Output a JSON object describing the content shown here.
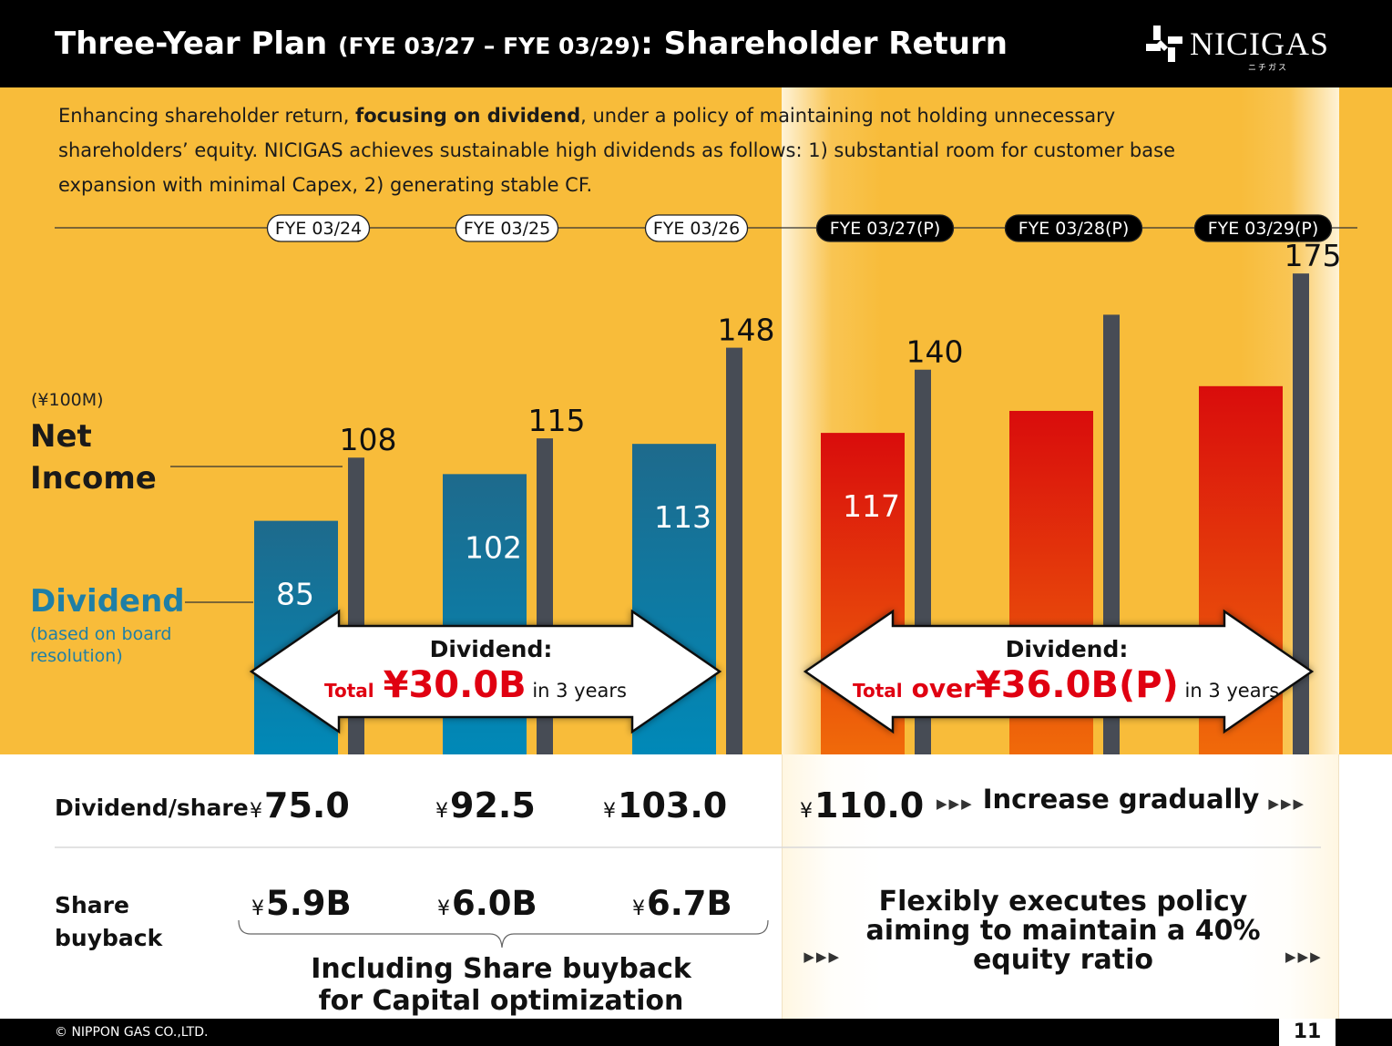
{
  "header": {
    "title_main": "Three-Year Plan ",
    "title_sub": "(FYE 03/27 – FYE 03/29)",
    "title_end": ": Shareholder Return",
    "logo_text": "NICIGAS",
    "logo_kana": "ニチガス"
  },
  "intro": {
    "part1": "Enhancing shareholder return, ",
    "bold": "focusing on dividend",
    "part2": ", under a policy of maintaining not holding unnecessary shareholders’ equity. NICIGAS achieves sustainable high dividends as follows: 1) substantial room for customer base expansion with minimal Capex, 2) generating stable CF."
  },
  "legend": {
    "unit": "(¥100M)",
    "net_income": "Net Income",
    "dividend": "Dividend",
    "dividend_note": "(based on board resolution)"
  },
  "chart_data": {
    "type": "bar",
    "categories": [
      "FYE 03/24",
      "FYE 03/25",
      "FYE 03/26",
      "FYE 03/27(P)",
      "FYE 03/28(P)",
      "FYE 03/29(P)"
    ],
    "projected": [
      false,
      false,
      false,
      true,
      true,
      true
    ],
    "unit": "¥100M",
    "series": [
      {
        "name": "Dividend",
        "values": [
          85,
          102,
          113,
          117,
          125,
          134
        ],
        "labels": [
          "85",
          "102",
          "113",
          "117",
          "",
          ""
        ]
      },
      {
        "name": "Net Income",
        "values": [
          108,
          115,
          148,
          140,
          160,
          175
        ],
        "labels": [
          "108",
          "115",
          "148",
          "140",
          "",
          "175"
        ]
      }
    ],
    "ylim": [
      0,
      185
    ],
    "colors": {
      "dividend_actual": "#0089b8",
      "dividend_actual_top": "#1e6a8c",
      "dividend_plan": "#f06a0a",
      "dividend_plan_top": "#d90c0c",
      "net_income": "#474c55"
    }
  },
  "arrows": [
    {
      "heading": "Dividend:",
      "total_word": "Total",
      "amount": "¥30.0B",
      "prefix": "",
      "suffix": " in 3 years"
    },
    {
      "heading": "Dividend:",
      "total_word": "Total",
      "prefix": "over",
      "amount": "¥36.0B(P)",
      "suffix": " in 3 years"
    }
  ],
  "dividend_per_share": {
    "label": "Dividend/share",
    "values": [
      {
        "yen": "¥",
        "amount": "75.0"
      },
      {
        "yen": "¥",
        "amount": "92.5"
      },
      {
        "yen": "¥",
        "amount": "103.0"
      },
      {
        "yen": "¥",
        "amount": "110.0"
      }
    ],
    "plan_note": "Increase gradually"
  },
  "share_buyback": {
    "label": "Share buyback",
    "values": [
      {
        "yen": "¥",
        "amount": "5.9B"
      },
      {
        "yen": "¥",
        "amount": "6.0B"
      },
      {
        "yen": "¥",
        "amount": "6.7B"
      }
    ],
    "actual_note": "Including Share buyback for Capital optimization",
    "plan_note": "Flexibly executes policy aiming to maintain a 40% equity ratio"
  },
  "footer": {
    "copyright": "© NIPPON GAS CO.,LTD.",
    "page": "11"
  }
}
